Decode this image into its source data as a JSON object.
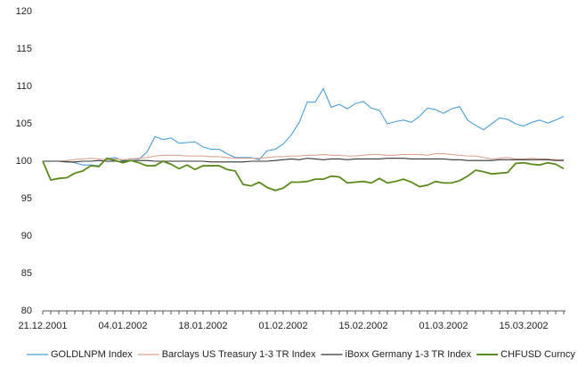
{
  "chart_data": {
    "type": "line",
    "categories": [
      "21.12.2001",
      null,
      null,
      null,
      null,
      null,
      null,
      null,
      null,
      null,
      "04.01.2002",
      null,
      null,
      null,
      null,
      null,
      null,
      null,
      null,
      null,
      "18.01.2002",
      null,
      null,
      null,
      null,
      null,
      null,
      null,
      null,
      null,
      "01.02.2002",
      null,
      null,
      null,
      null,
      null,
      null,
      null,
      null,
      null,
      "15.02.2002",
      null,
      null,
      null,
      null,
      null,
      null,
      null,
      null,
      null,
      "01.03.2002",
      null,
      null,
      null,
      null,
      null,
      null,
      null,
      null,
      null,
      "15.03.2002",
      null,
      null,
      null,
      null,
      null
    ],
    "series": [
      {
        "name": "GOLDLNPM Index",
        "color": "#4a9fd6",
        "values": [
          100,
          100,
          100,
          100,
          99.8,
          99.5,
          99.5,
          99.4,
          100.3,
          100.5,
          100.1,
          100.3,
          100.3,
          101.2,
          103.3,
          102.9,
          103.1,
          102.4,
          102.5,
          102.6,
          101.9,
          101.6,
          101.6,
          101.0,
          100.5,
          100.5,
          100.5,
          100.2,
          101.4,
          101.6,
          102.3,
          103.5,
          105.2,
          107.9,
          107.9,
          109.7,
          107.2,
          107.6,
          107.0,
          107.7,
          108.0,
          107.1,
          106.8,
          105.0,
          105.3,
          105.5,
          105.2,
          106.0,
          107.1,
          106.9,
          106.4,
          107.0,
          107.3,
          105.5,
          104.8,
          104.2,
          105.0,
          105.8,
          105.6,
          105.0,
          104.7,
          105.2,
          105.5,
          105.1,
          105.5,
          106.0
        ]
      },
      {
        "name": "Barclays US Treasury 1-3 TR Index",
        "color": "#dba58c",
        "values": [
          100,
          100,
          100,
          100.1,
          100.2,
          100.3,
          100.4,
          100.3,
          100.2,
          100.3,
          100.2,
          100.3,
          100.4,
          100.5,
          100.7,
          100.8,
          100.8,
          100.8,
          100.7,
          100.7,
          100.7,
          100.6,
          100.6,
          100.5,
          100.4,
          100.4,
          100.4,
          100.4,
          100.5,
          100.6,
          100.6,
          100.7,
          100.7,
          100.8,
          100.8,
          100.9,
          100.8,
          100.8,
          100.7,
          100.7,
          100.8,
          100.9,
          100.9,
          100.8,
          100.8,
          100.9,
          100.9,
          100.9,
          100.8,
          101.0,
          101.0,
          100.9,
          100.8,
          100.7,
          100.7,
          100.5,
          100.3,
          100.4,
          100.5,
          100.3,
          100.3,
          100.4,
          100.3,
          100.3,
          100.2,
          100.2
        ]
      },
      {
        "name": "iBoxx Germany 1-3 TR Index",
        "color": "#333333",
        "values": [
          100,
          100,
          100,
          99.9,
          99.9,
          100,
          100,
          100.1,
          100,
          100,
          100,
          100.1,
          100.1,
          100.1,
          100,
          100,
          100,
          100,
          100,
          100,
          100,
          99.9,
          99.9,
          99.9,
          99.9,
          99.9,
          100,
          100,
          100,
          100.1,
          100.2,
          100.3,
          100.2,
          100.4,
          100.3,
          100.2,
          100.3,
          100.3,
          100.2,
          100.3,
          100.3,
          100.3,
          100.3,
          100.4,
          100.4,
          100.4,
          100.3,
          100.3,
          100.3,
          100.3,
          100.3,
          100.2,
          100.2,
          100.1,
          100.1,
          100.1,
          100.1,
          100.2,
          100.2,
          100.2,
          100.2,
          100.2,
          100.2,
          100.2,
          100.1,
          100.1
        ]
      },
      {
        "name": "CHFUSD Curncy",
        "color": "#5b8a1c",
        "values": [
          100,
          97.5,
          97.7,
          97.8,
          98.4,
          98.7,
          99.4,
          99.3,
          100.4,
          100.1,
          99.8,
          100.1,
          99.8,
          99.4,
          99.4,
          100.0,
          99.6,
          99.0,
          99.5,
          98.9,
          99.4,
          99.4,
          99.4,
          98.9,
          98.7,
          96.9,
          96.7,
          97.2,
          96.5,
          96.1,
          96.4,
          97.2,
          97.2,
          97.3,
          97.6,
          97.6,
          98.0,
          97.9,
          97.1,
          97.2,
          97.3,
          97.1,
          97.7,
          97.1,
          97.3,
          97.6,
          97.2,
          96.6,
          96.8,
          97.3,
          97.1,
          97.1,
          97.4,
          98.0,
          98.8,
          98.6,
          98.3,
          98.4,
          98.5,
          99.7,
          99.8,
          99.6,
          99.5,
          99.8,
          99.6,
          99.0
        ]
      }
    ],
    "ylim": [
      80,
      120
    ],
    "yticks": [
      80,
      85,
      90,
      95,
      100,
      105,
      110,
      115,
      120
    ],
    "grid": false,
    "legend": "bottom"
  }
}
